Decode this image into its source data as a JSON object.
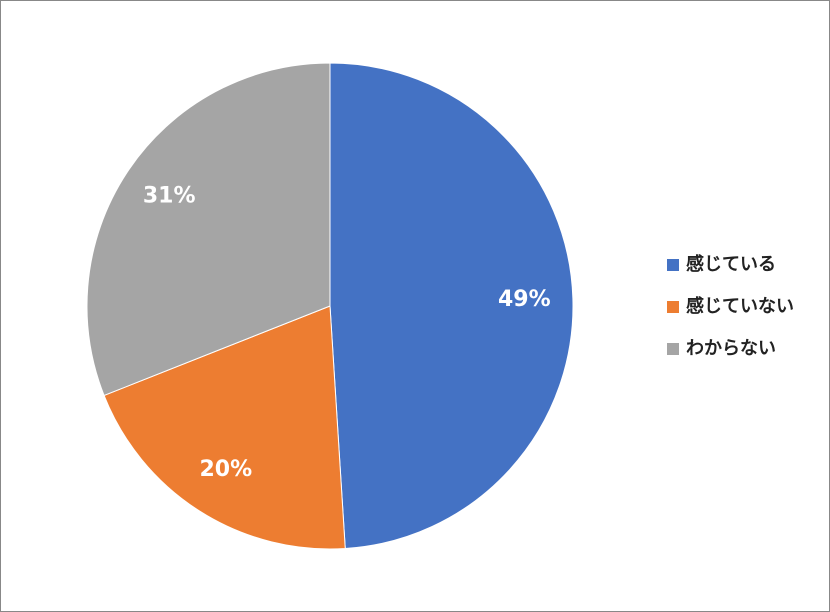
{
  "chart_data": {
    "type": "pie",
    "categories": [
      "感じている",
      "感じていない",
      "わからない"
    ],
    "values": [
      49,
      20,
      31
    ],
    "value_labels": [
      "49%",
      "20%",
      "31%"
    ],
    "colors": [
      "#4472c4",
      "#ed7d31",
      "#a5a5a5"
    ],
    "legend": "right"
  }
}
